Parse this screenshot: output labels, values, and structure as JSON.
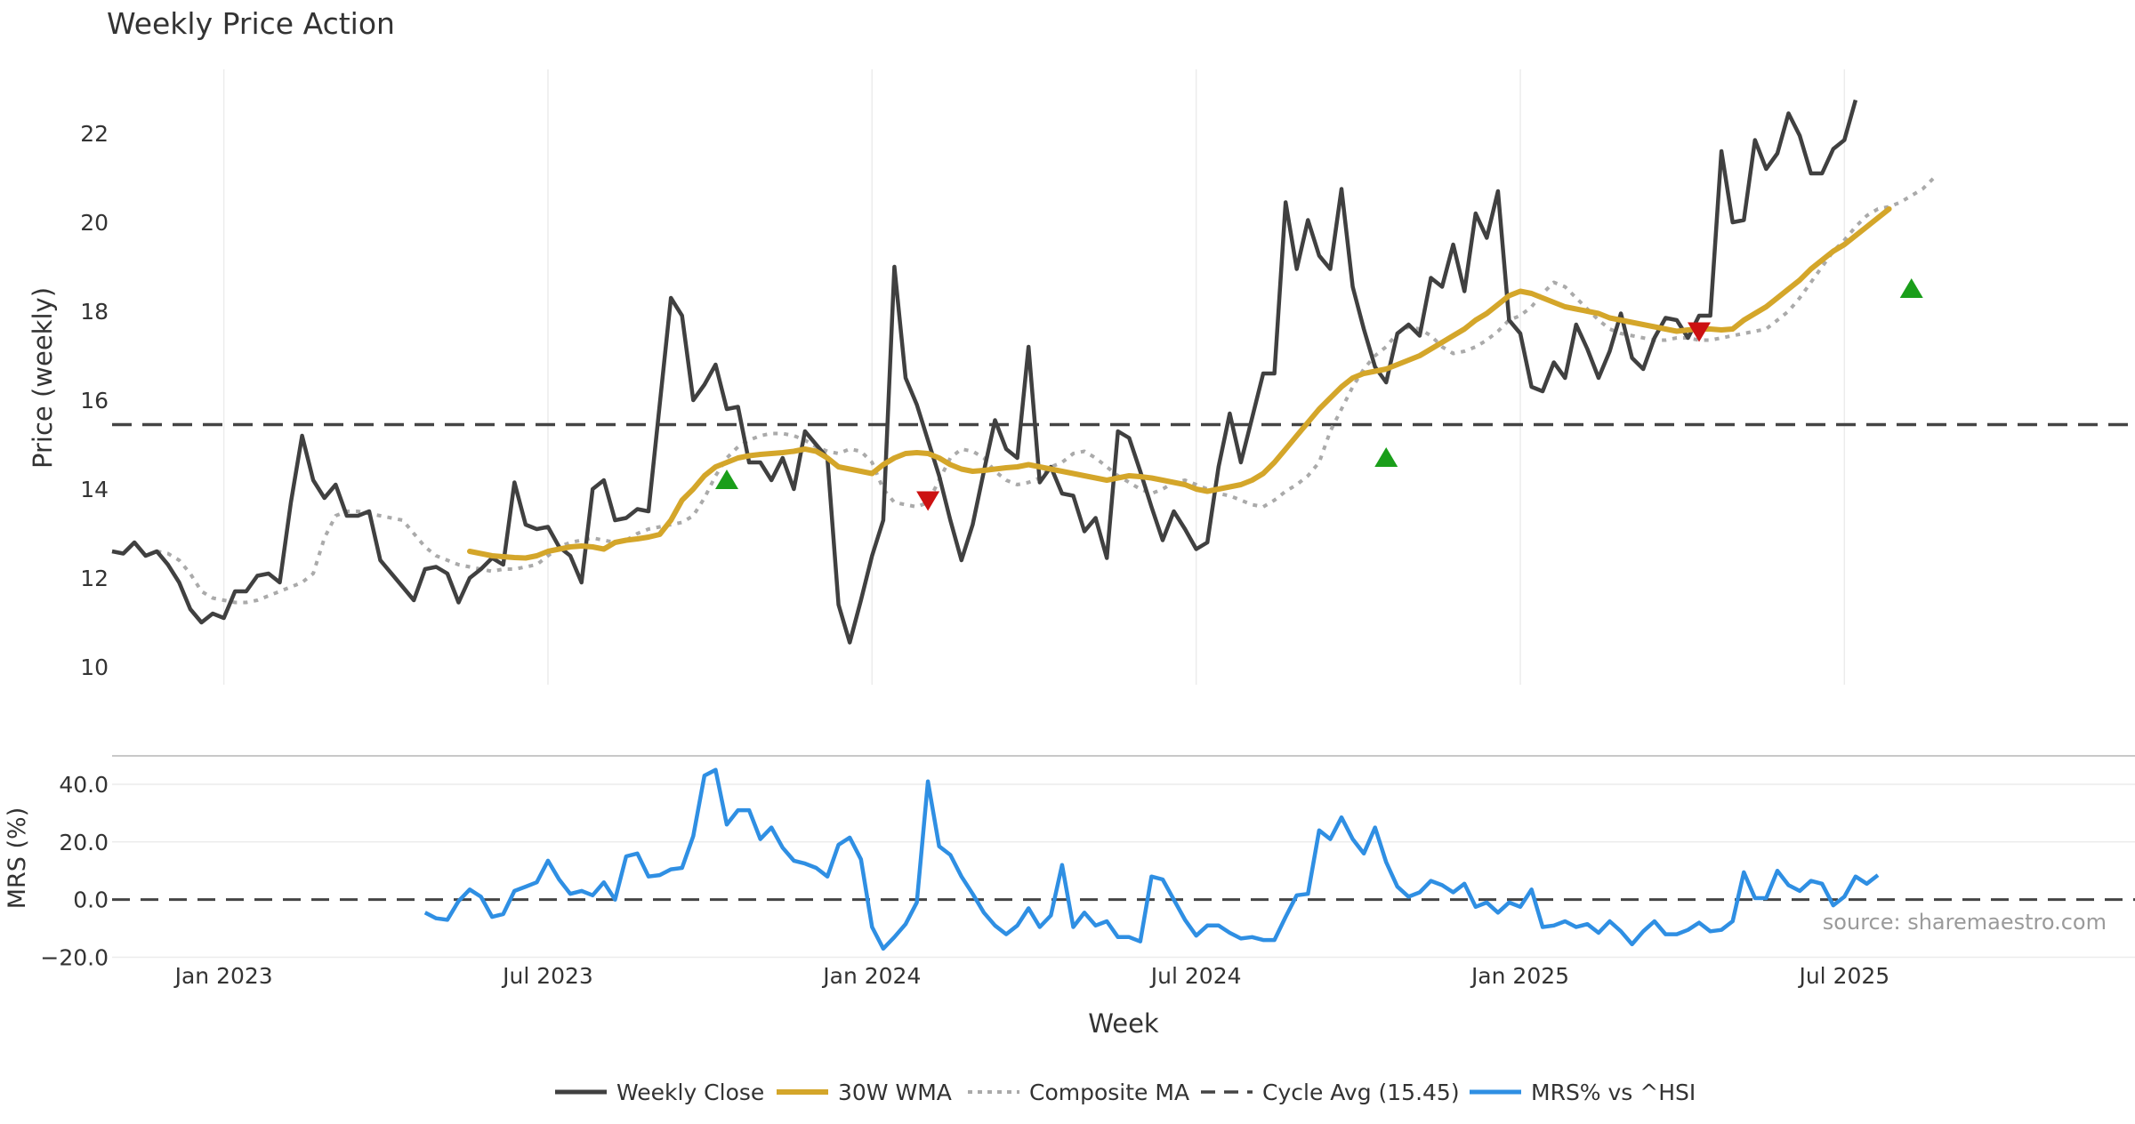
{
  "chart_data": [
    {
      "type": "line",
      "title": "Weekly Price Action",
      "ylabel": "Price (weekly)",
      "ylim": [
        9.6,
        23.4
      ],
      "yticks": [
        "10",
        "12",
        "14",
        "16",
        "18",
        "20",
        "22"
      ],
      "x_range": [
        0,
        181
      ],
      "vgrid_weeks": [
        10,
        39,
        68,
        97,
        126,
        155
      ],
      "series": [
        {
          "name": "Weekly Close",
          "color": "#404040",
          "x0": 0,
          "values": [
            12.6,
            12.55,
            12.8,
            12.5,
            12.6,
            12.3,
            11.9,
            11.3,
            11.0,
            11.2,
            11.1,
            11.7,
            11.7,
            12.05,
            12.1,
            11.9,
            13.7,
            15.2,
            14.2,
            13.8,
            14.1,
            13.4,
            13.4,
            13.5,
            12.4,
            12.1,
            11.8,
            11.5,
            12.2,
            12.25,
            12.1,
            11.45,
            12.0,
            12.2,
            12.45,
            12.3,
            14.15,
            13.2,
            13.1,
            13.15,
            12.7,
            12.5,
            11.9,
            14.0,
            14.2,
            13.3,
            13.35,
            13.55,
            13.5,
            15.9,
            18.3,
            17.9,
            16.0,
            16.35,
            16.8,
            15.8,
            15.85,
            14.6,
            14.6,
            14.2,
            14.7,
            14.0,
            15.3,
            15.0,
            14.7,
            11.4,
            10.55,
            11.5,
            12.5,
            13.3,
            19.0,
            16.5,
            15.9,
            15.1,
            14.3,
            13.3,
            12.4,
            13.2,
            14.4,
            15.55,
            14.9,
            14.7,
            17.2,
            14.15,
            14.5,
            13.9,
            13.85,
            13.05,
            13.35,
            12.45,
            15.3,
            15.15,
            14.4,
            13.6,
            12.85,
            13.5,
            13.1,
            12.65,
            12.8,
            14.5,
            15.7,
            14.6,
            15.6,
            16.6,
            16.6,
            20.45,
            18.95,
            20.05,
            19.25,
            18.95,
            20.75,
            18.55,
            17.6,
            16.75,
            16.4,
            17.5,
            17.7,
            17.45,
            18.75,
            18.55,
            19.5,
            18.45,
            20.2,
            19.65,
            20.7,
            17.8,
            17.5,
            16.3,
            16.2,
            16.85,
            16.5,
            17.7,
            17.15,
            16.5,
            17.1,
            17.95,
            16.95,
            16.7,
            17.4,
            17.85,
            17.8,
            17.4,
            17.9,
            17.9,
            21.6,
            20.0,
            20.05,
            21.85,
            21.2,
            21.55,
            22.45,
            21.95,
            21.1,
            21.1,
            21.65,
            21.85,
            22.75
          ]
        },
        {
          "name": "30W WMA",
          "color": "#d4a62a",
          "x0": 32,
          "values": [
            12.6,
            12.55,
            12.5,
            12.48,
            12.46,
            12.45,
            12.5,
            12.6,
            12.65,
            12.7,
            12.72,
            12.7,
            12.65,
            12.8,
            12.85,
            12.88,
            12.92,
            12.98,
            13.3,
            13.75,
            14.0,
            14.3,
            14.5,
            14.6,
            14.7,
            14.75,
            14.78,
            14.8,
            14.82,
            14.85,
            14.9,
            14.85,
            14.7,
            14.5,
            14.45,
            14.4,
            14.35,
            14.55,
            14.7,
            14.8,
            14.82,
            14.8,
            14.7,
            14.55,
            14.45,
            14.4,
            14.42,
            14.45,
            14.48,
            14.5,
            14.55,
            14.5,
            14.45,
            14.4,
            14.35,
            14.3,
            14.25,
            14.2,
            14.25,
            14.3,
            14.28,
            14.25,
            14.2,
            14.15,
            14.1,
            14.0,
            13.95,
            14.0,
            14.05,
            14.1,
            14.2,
            14.35,
            14.6,
            14.9,
            15.2,
            15.5,
            15.8,
            16.05,
            16.3,
            16.5,
            16.6,
            16.65,
            16.7,
            16.8,
            16.9,
            17.0,
            17.15,
            17.3,
            17.45,
            17.6,
            17.8,
            17.95,
            18.15,
            18.35,
            18.45,
            18.4,
            18.3,
            18.2,
            18.1,
            18.05,
            18.0,
            17.95,
            17.85,
            17.8,
            17.75,
            17.7,
            17.65,
            17.6,
            17.55,
            17.58,
            17.6,
            17.6,
            17.58,
            17.6,
            17.8,
            17.95,
            18.1,
            18.3,
            18.5,
            18.7,
            18.95,
            19.15,
            19.35,
            19.5,
            19.7,
            19.9,
            20.1,
            20.3
          ]
        },
        {
          "name": "Composite MA",
          "color": "#aaaaaa",
          "x0": 4,
          "values": [
            12.6,
            12.55,
            12.4,
            12.1,
            11.7,
            11.55,
            11.5,
            11.45,
            11.45,
            11.5,
            11.6,
            11.7,
            11.8,
            11.9,
            12.1,
            12.9,
            13.4,
            13.5,
            13.5,
            13.45,
            13.4,
            13.35,
            13.3,
            13.0,
            12.7,
            12.5,
            12.4,
            12.3,
            12.25,
            12.2,
            12.15,
            12.2,
            12.2,
            12.25,
            12.3,
            12.5,
            12.7,
            12.8,
            12.85,
            12.9,
            12.85,
            12.8,
            12.85,
            13.0,
            13.1,
            13.15,
            13.2,
            13.25,
            13.4,
            13.8,
            14.3,
            14.7,
            14.95,
            15.1,
            15.2,
            15.25,
            15.25,
            15.2,
            15.1,
            14.95,
            14.85,
            14.8,
            14.9,
            14.85,
            14.6,
            14.0,
            13.7,
            13.65,
            13.6,
            13.7,
            14.2,
            14.7,
            14.9,
            14.85,
            14.7,
            14.4,
            14.2,
            14.1,
            14.15,
            14.25,
            14.5,
            14.6,
            14.8,
            14.85,
            14.7,
            14.5,
            14.3,
            14.15,
            14.0,
            13.9,
            14.0,
            14.15,
            14.2,
            14.1,
            14.0,
            13.9,
            13.85,
            13.75,
            13.65,
            13.6,
            13.75,
            13.95,
            14.1,
            14.3,
            14.6,
            15.3,
            15.8,
            16.3,
            16.7,
            17.0,
            17.2,
            17.5,
            17.65,
            17.6,
            17.45,
            17.2,
            17.05,
            17.1,
            17.2,
            17.35,
            17.55,
            17.8,
            17.9,
            18.1,
            18.4,
            18.65,
            18.55,
            18.3,
            18.05,
            17.8,
            17.6,
            17.5,
            17.45,
            17.4,
            17.35,
            17.35,
            17.4,
            17.4,
            17.35,
            17.35,
            17.4,
            17.45,
            17.5,
            17.55,
            17.6,
            17.8,
            18.0,
            18.3,
            18.65,
            19.0,
            19.35,
            19.6,
            19.9,
            20.15,
            20.3,
            20.35,
            20.45,
            20.6,
            20.75,
            21.0
          ]
        },
        {
          "name": "Cycle Avg (15.45)",
          "color": "#444444",
          "constant": 15.45
        }
      ],
      "buy_signals": [
        [
          55,
          14.2
        ],
        [
          114,
          14.7
        ],
        [
          161,
          18.5
        ]
      ],
      "sell_signals": [
        [
          73,
          13.75
        ],
        [
          142,
          17.55
        ]
      ],
      "signal_colors": {
        "buy": "#1a9e1a",
        "sell": "#cc1111"
      }
    },
    {
      "type": "line",
      "ylabel": "MRS (%)",
      "ylim": [
        -22,
        48
      ],
      "yticks": [
        "40.0",
        "20.0",
        "0.0",
        "−20.0"
      ],
      "xlabel": "Week",
      "xtick_labels": [
        "Jan 2023",
        "Jul 2023",
        "Jan 2024",
        "Jul 2024",
        "Jan 2025",
        "Jul 2025"
      ],
      "series": [
        {
          "name": "MRS% vs ^HSI",
          "color": "#2f8fe3",
          "x0": 28,
          "values": [
            -4.5,
            -6.5,
            -7,
            -0.5,
            3.5,
            1,
            -6,
            -5,
            3,
            4.5,
            6,
            13.5,
            7,
            2,
            3,
            1.5,
            6,
            0,
            15,
            16,
            8,
            8.5,
            10.5,
            11,
            22,
            43,
            45,
            26,
            31,
            31,
            21,
            25,
            18,
            13.5,
            12.5,
            11,
            8,
            19,
            21.5,
            14,
            -9.5,
            -17,
            -13,
            -8.5,
            -1,
            41,
            18.5,
            15.5,
            8,
            2,
            -4.5,
            -9,
            -12,
            -9,
            -3,
            -9.5,
            -5.5,
            12,
            -9.5,
            -4.5,
            -9,
            -7.5,
            -13,
            -13,
            -14.5,
            8,
            7,
            0,
            -7,
            -12.5,
            -9,
            -9,
            -11.5,
            -13.5,
            -13,
            -14,
            -14,
            -6,
            1.5,
            2,
            24,
            21,
            28.5,
            21,
            16,
            25,
            13,
            4.5,
            1,
            2.5,
            6.5,
            5,
            2.5,
            5.5,
            -2.5,
            -1,
            -4.5,
            -1,
            -2.5,
            3.5,
            -9.5,
            -9,
            -7.5,
            -9.5,
            -8.5,
            -11.5,
            -7.5,
            -11,
            -15.5,
            -11,
            -7.5,
            -12,
            -12,
            -10.5,
            -8,
            -11,
            -10.5,
            -7.5,
            9.5,
            0.5,
            0.5,
            10,
            5,
            3,
            6.5,
            5.5,
            -2,
            1,
            8,
            5.5,
            8.5
          ]
        }
      ],
      "zero_line": 0
    }
  ],
  "watermark": "source: sharemaestro.com"
}
